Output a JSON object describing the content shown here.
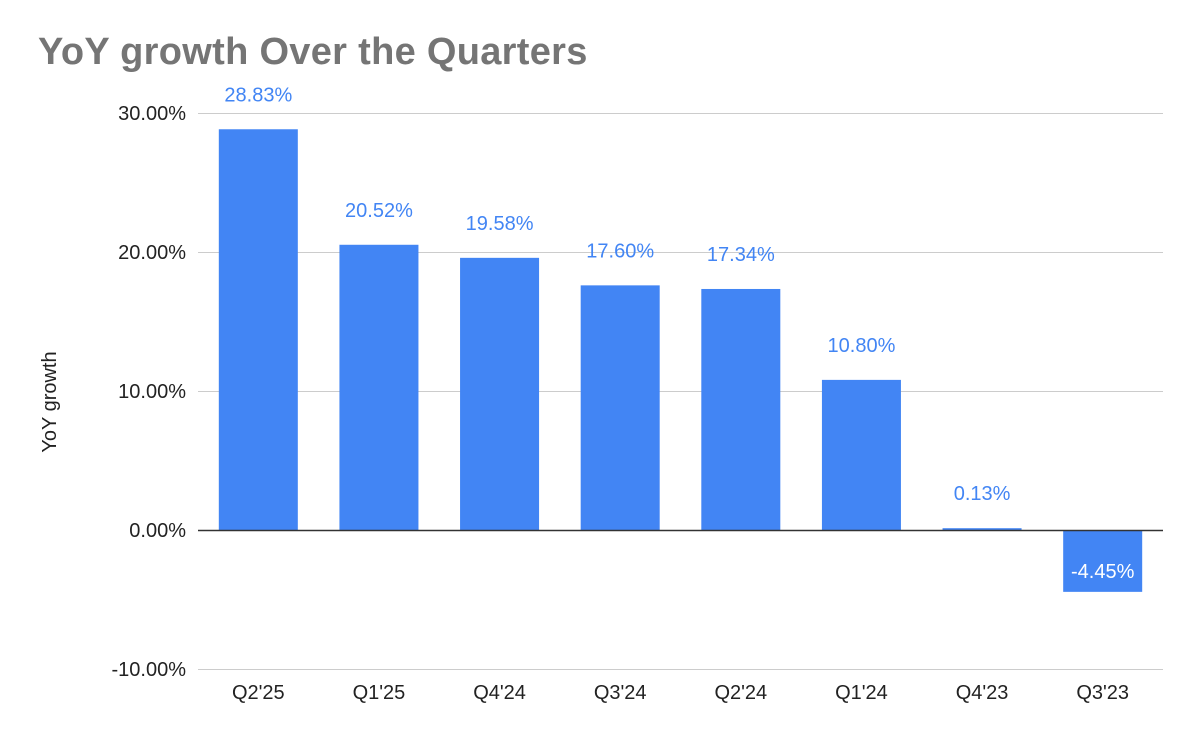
{
  "chart_data": {
    "type": "bar",
    "title": "YoY growth Over the Quarters",
    "xlabel": "",
    "ylabel": "YoY growth",
    "categories": [
      "Q2'25",
      "Q1'25",
      "Q4'24",
      "Q3'24",
      "Q2'24",
      "Q1'24",
      "Q4'23",
      "Q3'23"
    ],
    "series": [
      {
        "values": [
          28.83,
          20.52,
          19.58,
          17.6,
          17.34,
          10.8,
          0.13,
          -4.45
        ]
      }
    ],
    "data_labels": [
      "28.83%",
      "20.52%",
      "19.58%",
      "17.60%",
      "17.34%",
      "10.80%",
      "0.13%",
      "-4.45%"
    ],
    "ylim": [
      -10,
      30
    ],
    "yticks": [
      -10,
      0,
      10,
      20,
      30
    ],
    "ytick_labels": [
      "-10.00%",
      "0.00%",
      "10.00%",
      "20.00%",
      "30.00%"
    ],
    "grid": true,
    "legend": "none",
    "colors": {
      "bar": "#4285f4",
      "data_label": "#4285f4",
      "data_label_inside": "#ffffff",
      "grid": "#cccccc",
      "zero_line": "#333333",
      "title": "#757575",
      "axis_text": "#222222"
    }
  }
}
